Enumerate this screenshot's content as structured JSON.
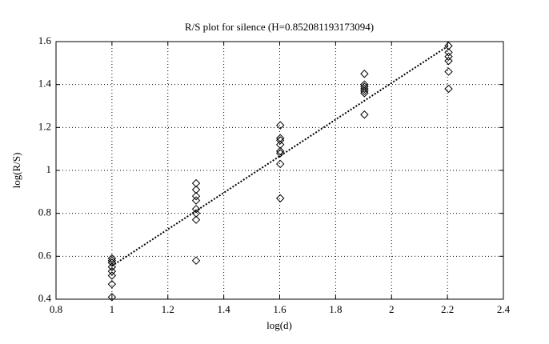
{
  "chart_data": {
    "type": "scatter",
    "title": "R/S plot for silence (H=0.852081193173094)",
    "x_label": "log(d)",
    "y_label": "log(R/S)",
    "xlim": [
      0.8,
      2.4
    ],
    "xticks": [
      0.8,
      1,
      1.2,
      1.4,
      1.6,
      1.8,
      2,
      2.2,
      2.4
    ],
    "ylim": [
      0.4,
      1.6
    ],
    "yticks": [
      0.4,
      0.6,
      0.8,
      1,
      1.2,
      1.4,
      1.6
    ],
    "grid": true,
    "series": [
      {
        "mode": "markers",
        "color": "#000000",
        "x": [
          1,
          1,
          1,
          1,
          1,
          1,
          1,
          1,
          1.301,
          1.301,
          1.301,
          1.301,
          1.301,
          1.301,
          1.301,
          1.301,
          1.602,
          1.602,
          1.602,
          1.602,
          1.602,
          1.602,
          1.602,
          1.602,
          1.903,
          1.903,
          1.903,
          1.903,
          1.903,
          1.903,
          1.903,
          2.204,
          2.204,
          2.204,
          2.204,
          2.204,
          2.204
        ],
        "values": [
          0.59,
          0.58,
          0.57,
          0.55,
          0.53,
          0.51,
          0.47,
          0.41,
          0.94,
          0.91,
          0.88,
          0.86,
          0.82,
          0.8,
          0.77,
          0.58,
          1.21,
          1.15,
          1.14,
          1.12,
          1.09,
          1.08,
          1.03,
          0.87,
          1.45,
          1.4,
          1.39,
          1.38,
          1.37,
          1.36,
          1.26,
          1.58,
          1.55,
          1.53,
          1.51,
          1.46,
          1.38
        ]
      },
      {
        "mode": "line",
        "color": "#000000",
        "x": [
          1,
          2.204
        ],
        "values": [
          0.555,
          1.581
        ]
      }
    ]
  }
}
